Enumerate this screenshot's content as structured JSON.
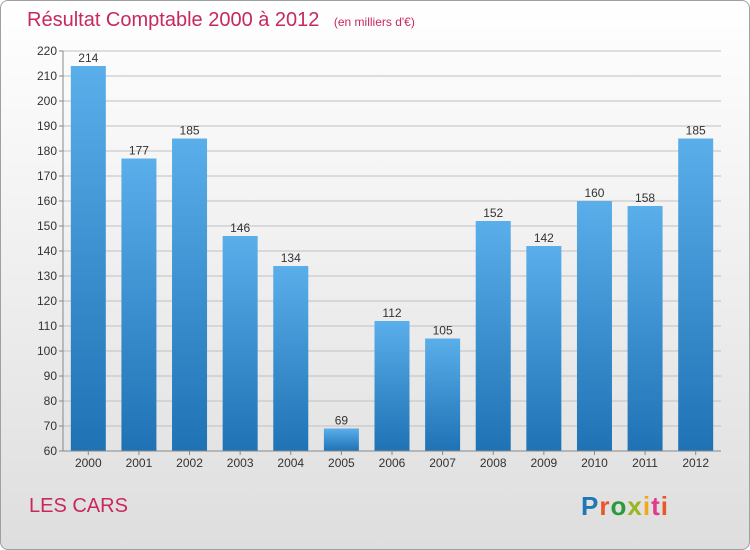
{
  "header": {
    "title": "Résultat Comptable 2000 à 2012",
    "subtitle": "(en milliers d'€)"
  },
  "footer": {
    "town": "LES CARS",
    "brand": "Proxiti",
    "brand_colors": [
      "#1f77b4",
      "#e8562a",
      "#2a9a3a",
      "#9ab51e",
      "#f2a81c",
      "#e23a8a",
      "#e8562a"
    ]
  },
  "colors": {
    "title": "#c8285f",
    "bar_top": "#5aaeea",
    "bar_bottom": "#1f72b4",
    "grid": "#c0c0c0",
    "axis_text": "#333333"
  },
  "chart_data": {
    "type": "bar",
    "title": "Résultat Comptable 2000 à 2012",
    "subtitle": "(en milliers d'€)",
    "categories": [
      "2000",
      "2001",
      "2002",
      "2003",
      "2004",
      "2005",
      "2006",
      "2007",
      "2008",
      "2009",
      "2010",
      "2011",
      "2012"
    ],
    "values": [
      214,
      177,
      185,
      146,
      134,
      69,
      112,
      105,
      152,
      142,
      160,
      158,
      185
    ],
    "ylim": [
      60,
      220
    ],
    "yticks": [
      60,
      70,
      80,
      90,
      100,
      110,
      120,
      130,
      140,
      150,
      160,
      170,
      180,
      190,
      200,
      210,
      220
    ],
    "grid": true,
    "data_labels": true
  }
}
